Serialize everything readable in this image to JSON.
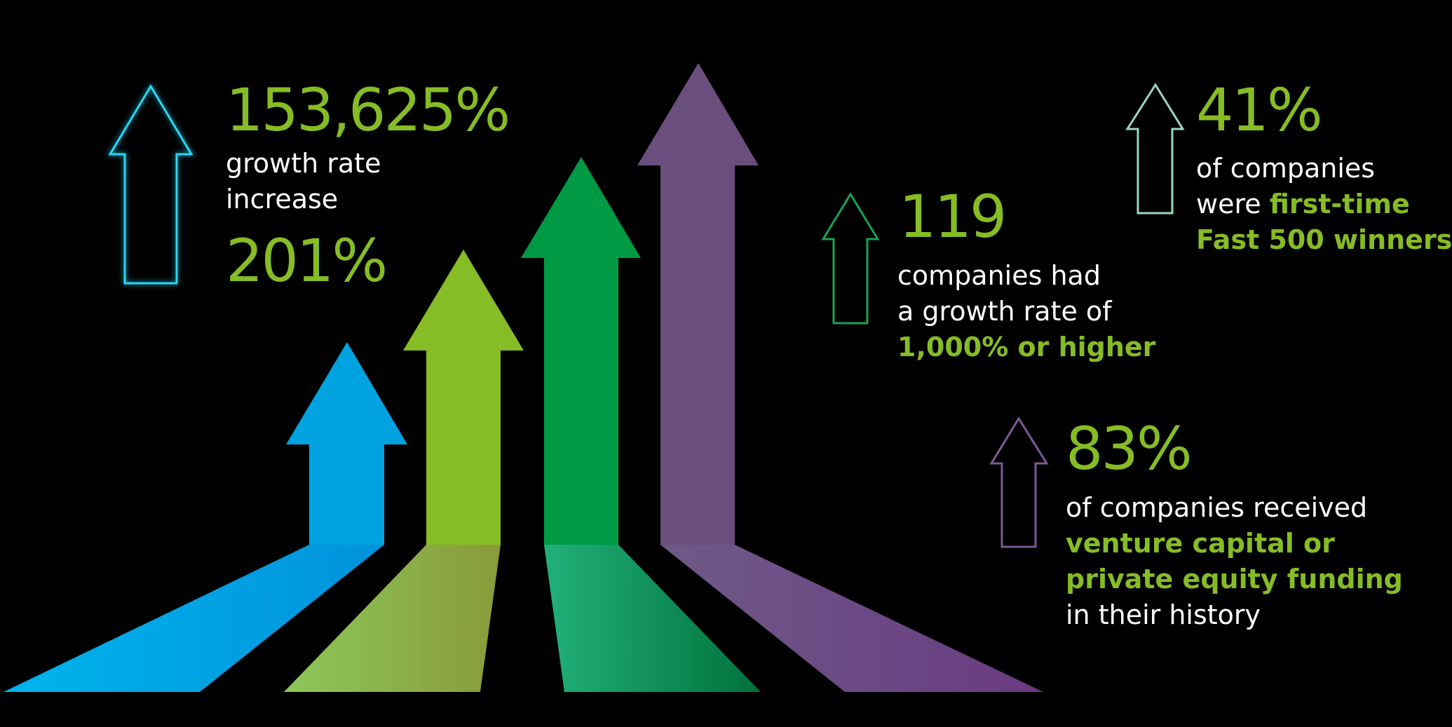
{
  "colors": {
    "background": "#000000",
    "accent_green": "#86bc25",
    "text_white": "#ffffff",
    "arrow_blue": "#00a3e0",
    "arrow_lime": "#86bc25",
    "arrow_green": "#009a44",
    "arrow_purple": "#6a4e7d",
    "outline_cyan": "#2ad8f0",
    "outline_green": "#1aa251",
    "outline_mint": "#9ad6c4",
    "outline_purple": "#7a5a95"
  },
  "stats": {
    "growth": {
      "icon": "outline-up-arrow-cyan",
      "value": "153,625%",
      "line1": "growth rate",
      "line2": "increase",
      "value2": "201%"
    },
    "high_growth": {
      "icon": "outline-up-arrow-green",
      "value": "119",
      "line1": "companies had",
      "line2": "a growth rate of",
      "highlight": "1,000% or higher"
    },
    "first_time": {
      "icon": "outline-up-arrow-mint",
      "value": "41%",
      "line1": "of companies",
      "line2_prefix": "were ",
      "line2_highlight": "first-time",
      "line3_highlight": "Fast 500 winners"
    },
    "funding": {
      "icon": "outline-up-arrow-purple",
      "value": "83%",
      "line1": "of companies received",
      "line2_highlight": "venture capital or",
      "line3_highlight": "private equity funding",
      "line4": "in their history"
    }
  },
  "illustration": {
    "arrows": [
      "blue-arrow",
      "lime-arrow",
      "green-arrow",
      "purple-arrow"
    ]
  }
}
